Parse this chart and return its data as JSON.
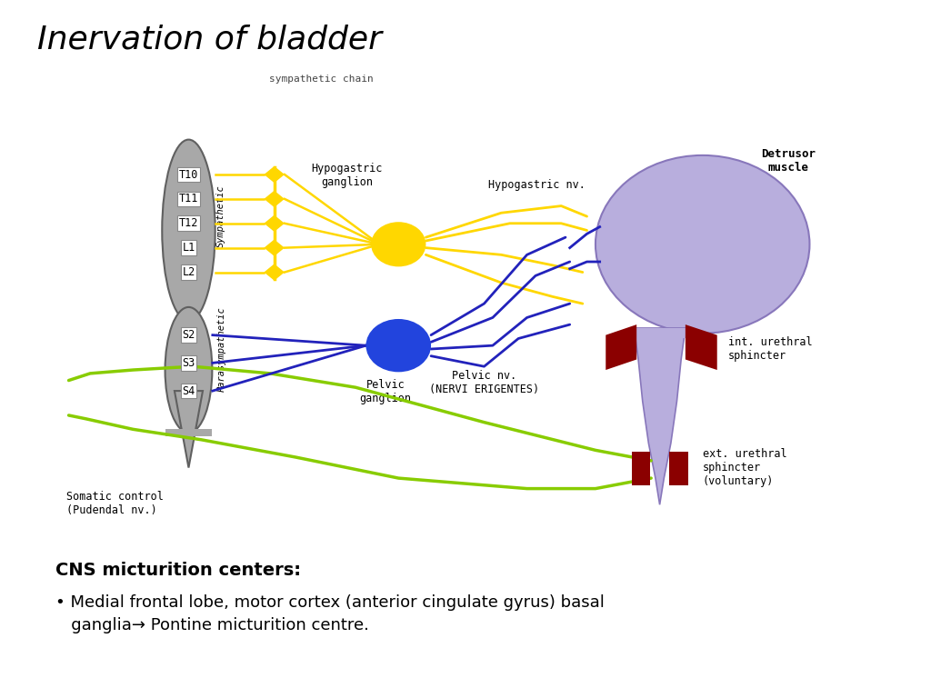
{
  "title": "Inervation of bladder",
  "title_fontsize": 26,
  "bg_color": "#FFFFFF",
  "diagram_bg": "#F0ECC0",
  "text_color": "#000000",
  "sympathetic_labels": [
    "T10",
    "T11",
    "T12",
    "L1",
    "L2"
  ],
  "parasympathetic_labels": [
    "S2",
    "S3",
    "S4"
  ],
  "cns_title": "CNS micturition centers:",
  "cns_bullet": "Medial frontal lobe, motor cortex (anterior cingulate gyrus) basal\n   ganglia→ Pontine micturition centre.",
  "sympathetic_chain_label": "sympathetic chain",
  "sympathetic_label": "Sympathetic",
  "parasympathetic_label": "Parasympathetic",
  "hypogastric_ganglion_label": "Hypogastric\nganglion",
  "hypogastric_nv_label": "Hypogastric nv.",
  "detrusor_label": "Detrusor\nmuscle",
  "pelvic_ganglion_label": "Pelvic\nganglion",
  "pelvic_nv_label": "Pelvic nv.\n(NERVI ERIGENTES)",
  "int_sphincter_label": "int. urethral\nsphincter",
  "ext_sphincter_label": "ext. urethral\nsphincter\n(voluntary)",
  "somatic_label": "Somatic control\n(Pudendal nv.)",
  "yellow_color": "#FFD700",
  "blue_color": "#2222BB",
  "green_color": "#88CC00",
  "bladder_color": "#B8AEDD",
  "bladder_edge": "#8877BB",
  "sphincter_color": "#8B0000",
  "spinal_color": "#A8A8A8",
  "spinal_edge": "#606060",
  "chain_dot_color": "#FFD700"
}
